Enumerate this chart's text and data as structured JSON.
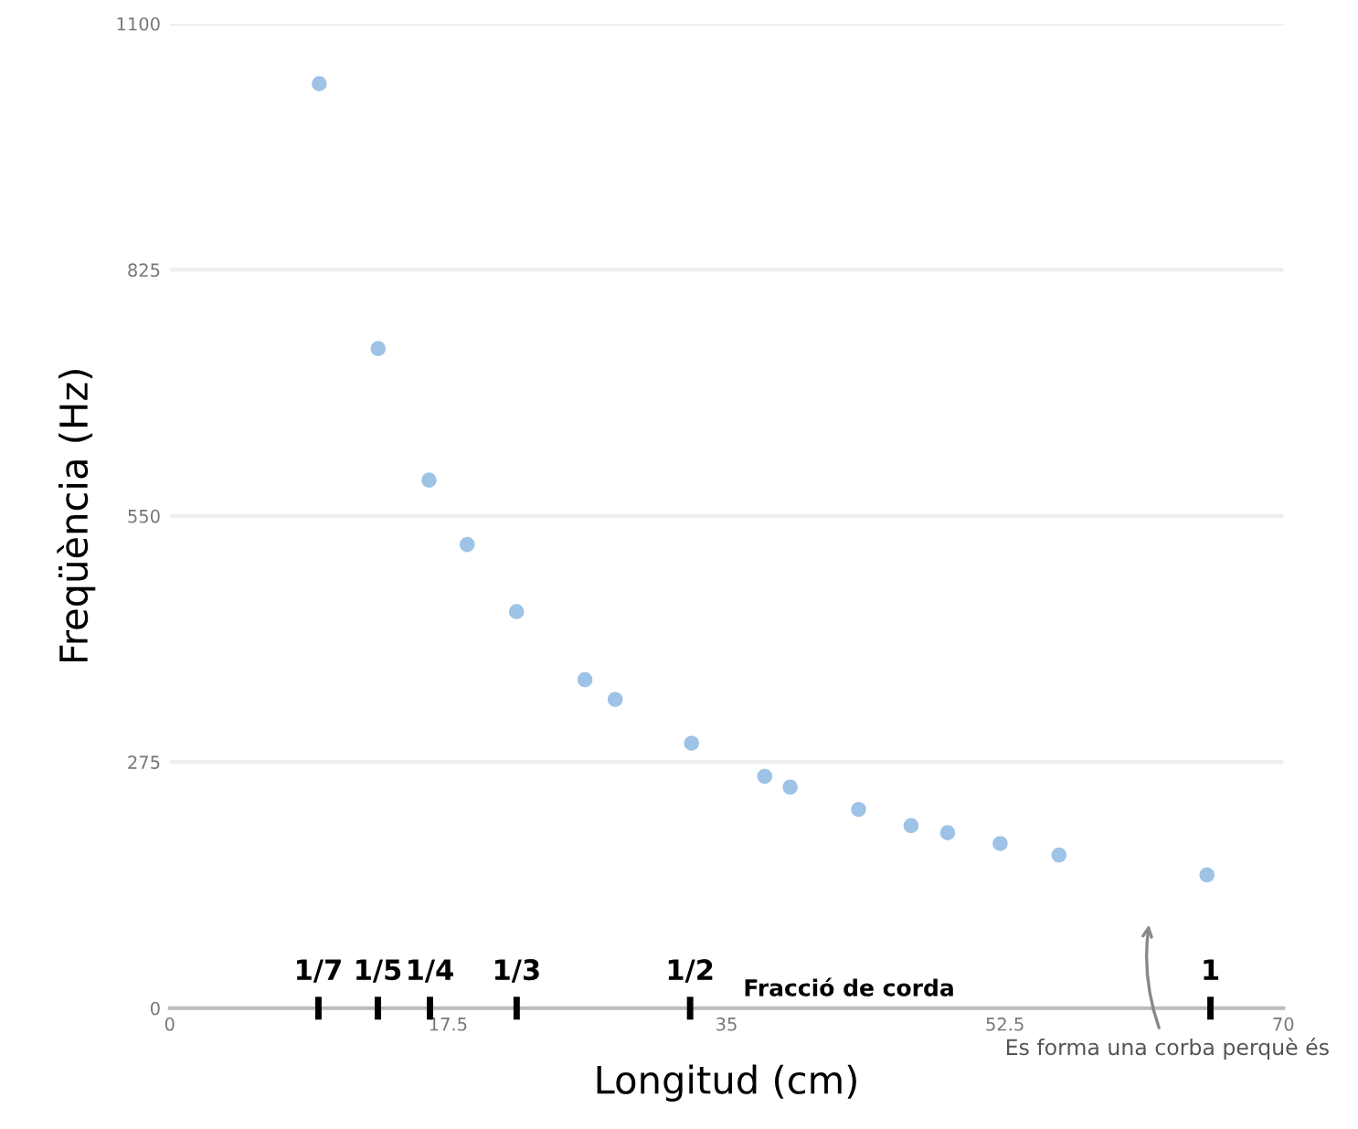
{
  "chart_data": {
    "type": "scatter",
    "xlabel": "Longitud (cm)",
    "ylabel": "Freqüència (Hz)",
    "x": [
      9.4,
      13.1,
      16.3,
      18.7,
      21.8,
      26.1,
      28.0,
      32.8,
      37.4,
      39.0,
      43.3,
      46.6,
      48.9,
      52.2,
      55.9,
      65.2
    ],
    "series": [
      {
        "color": "#9ec3e6",
        "values": [
          1033,
          737,
          590,
          518,
          443,
          367,
          345,
          296,
          259,
          247,
          222,
          204,
          196,
          184,
          171,
          149
        ]
      }
    ],
    "xlim": [
      0,
      70
    ],
    "xticks": [
      0,
      17.5,
      35,
      52.5,
      70
    ],
    "ylim": [
      0,
      1100
    ],
    "yticks": [
      0,
      275,
      550,
      825,
      1100
    ],
    "grid": "y",
    "marker": "circle",
    "x2label": "Fracció de corda",
    "x2lim": [
      0,
      1.07
    ],
    "x2ticks": [
      {
        "value": 0.142857,
        "label": "1/7"
      },
      {
        "value": 0.2,
        "label": "1/5"
      },
      {
        "value": 0.25,
        "label": "1/4"
      },
      {
        "value": 0.333333,
        "label": "1/3"
      },
      {
        "value": 0.5,
        "label": "1/2"
      },
      1
    ],
    "annotations": [
      "Es forma una corba perquè és"
    ]
  }
}
